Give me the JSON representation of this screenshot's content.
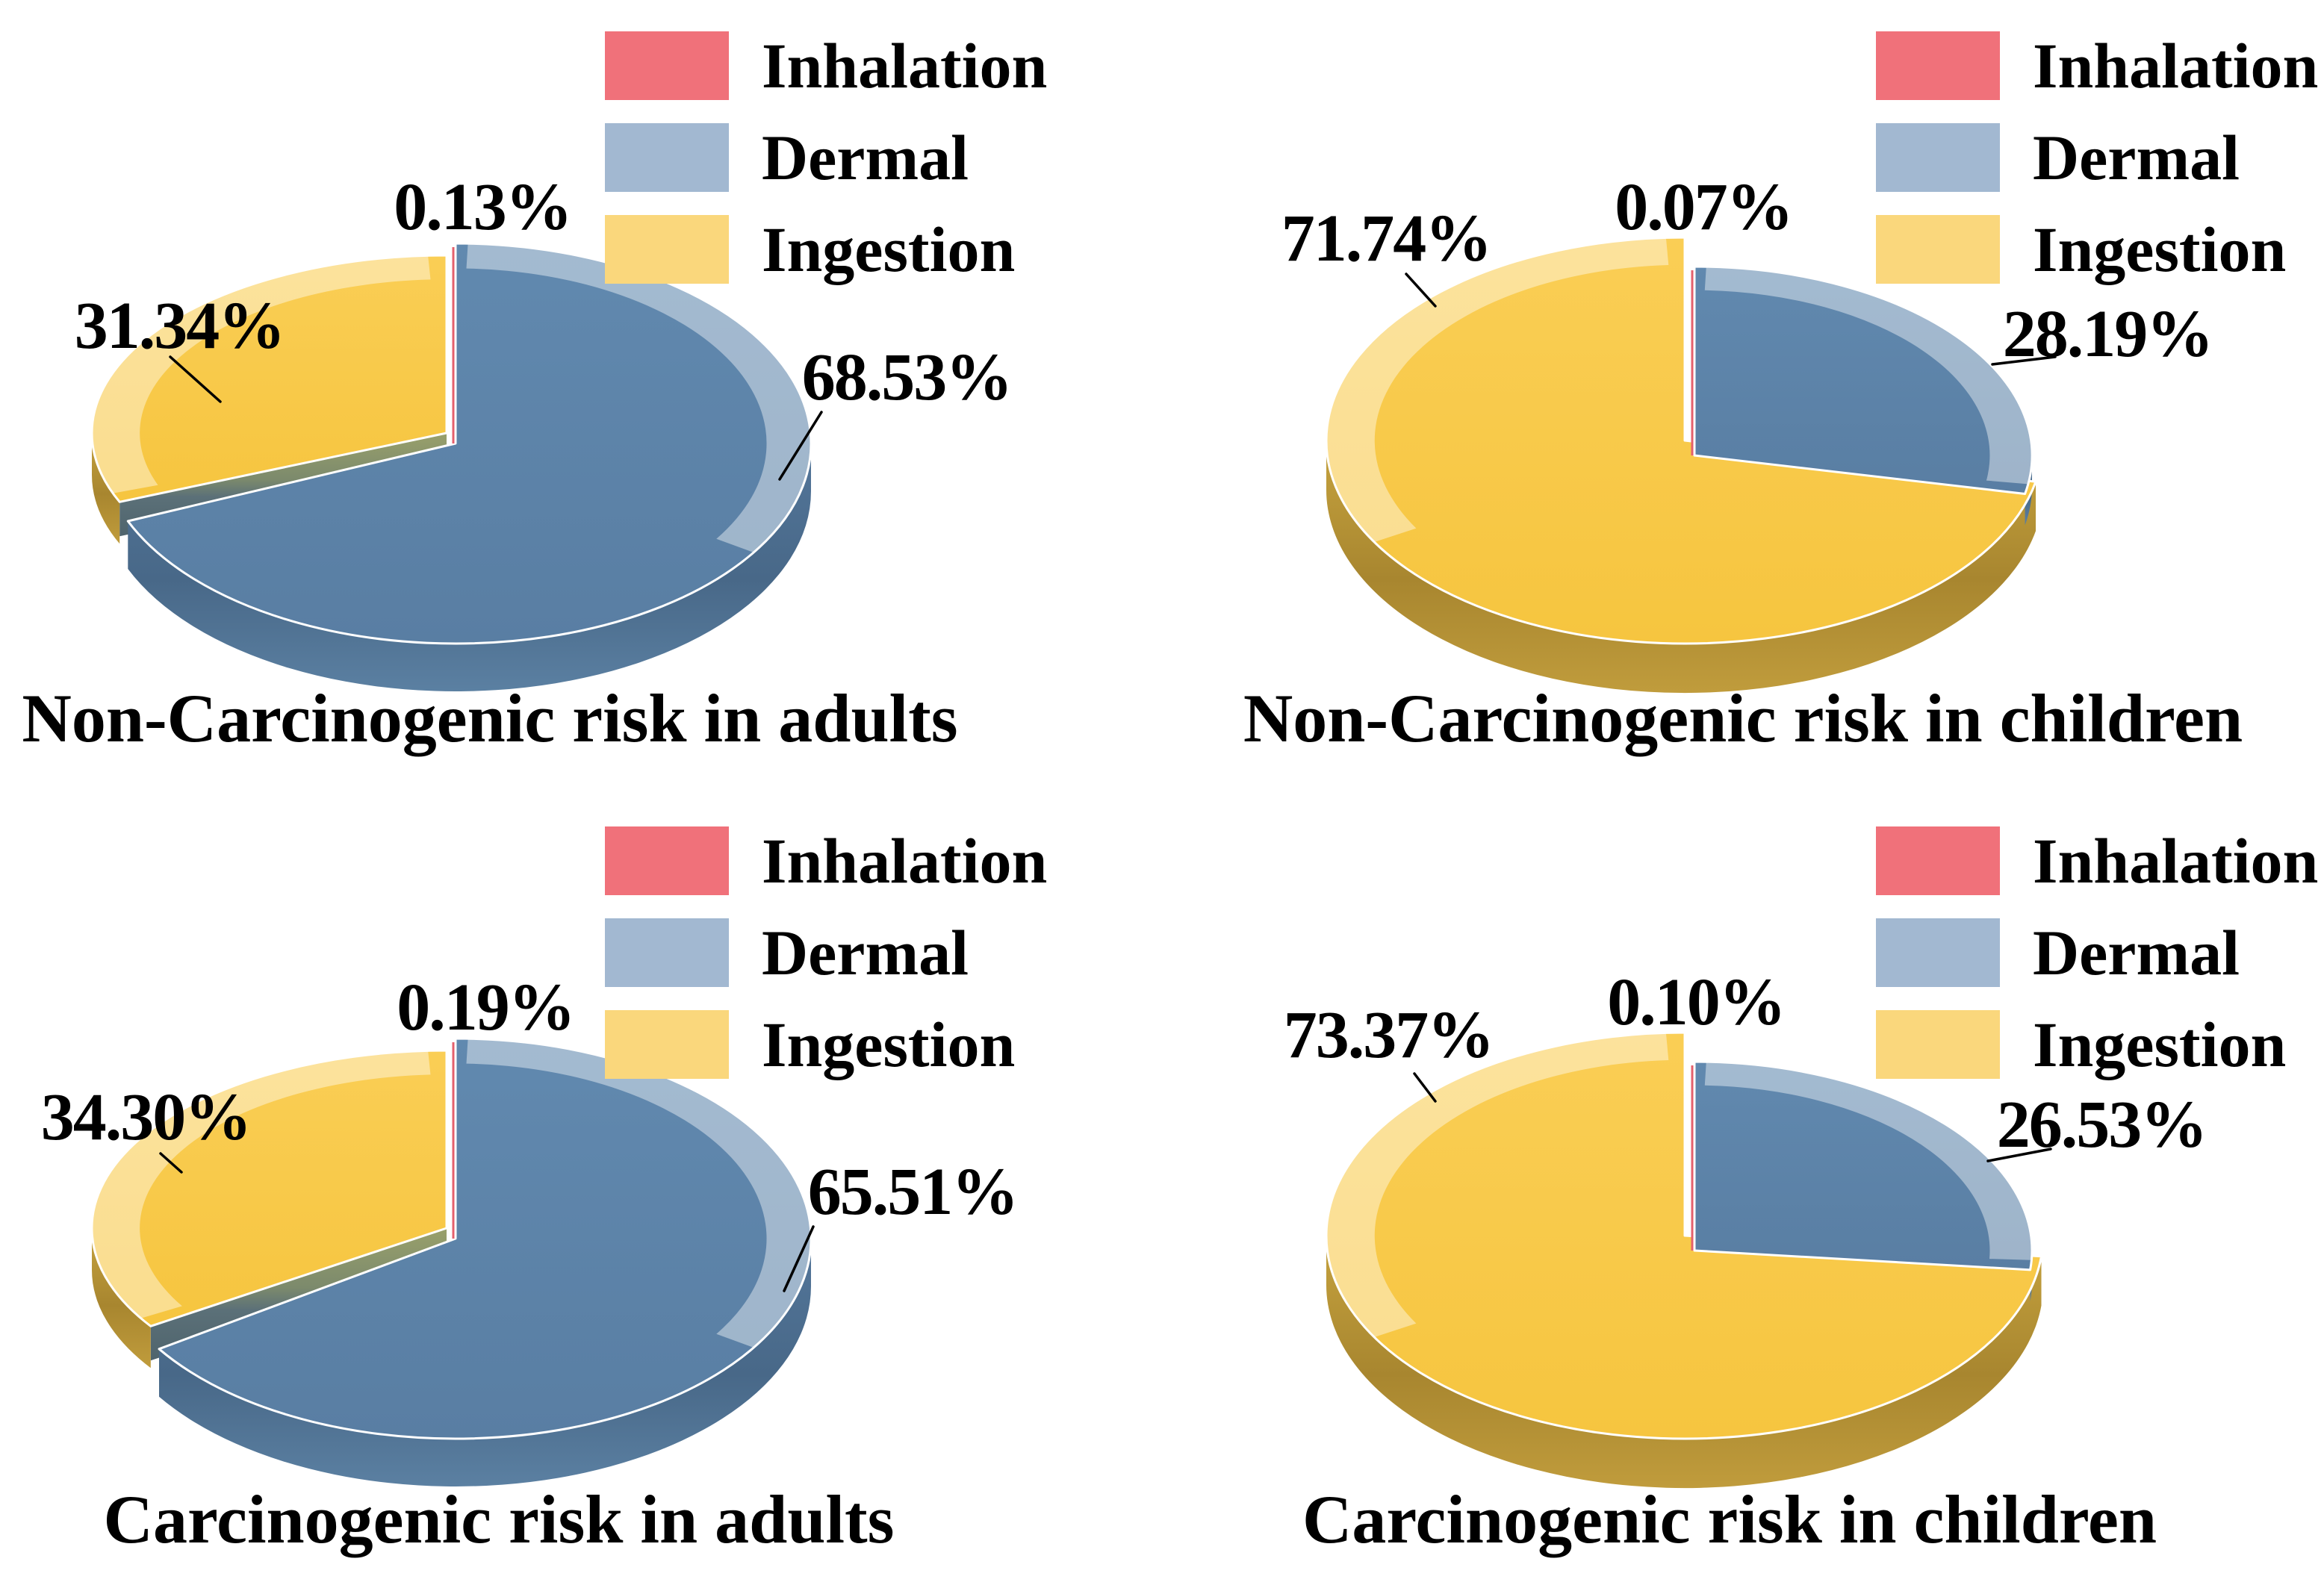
{
  "legend": {
    "items": [
      {
        "label": "Inhalation",
        "color": "#F0717A"
      },
      {
        "label": "Dermal",
        "color": "#A2B8D1"
      },
      {
        "label": "Ingestion",
        "color": "#FAD77C"
      }
    ]
  },
  "colors": {
    "inhalation_pie": "#E4606C",
    "dermal_pie": "#5E86AC",
    "ingestion_pie": "#F9CC4D",
    "text": "#000000",
    "background": "#FFFFFF"
  },
  "chart_data": [
    {
      "type": "pie",
      "title": "Non-Carcinogenic risk in adults",
      "legend_position": "top-right",
      "series": [
        {
          "name": "Inhalation",
          "value": 0.13,
          "label": "0.13%"
        },
        {
          "name": "Dermal",
          "value": 68.53,
          "label": "68.53%"
        },
        {
          "name": "Ingestion",
          "value": 31.34,
          "label": "31.34%"
        }
      ]
    },
    {
      "type": "pie",
      "title": "Non-Carcinogenic risk in children",
      "legend_position": "top-right",
      "series": [
        {
          "name": "Inhalation",
          "value": 0.07,
          "label": "0.07%"
        },
        {
          "name": "Dermal",
          "value": 28.19,
          "label": "28.19%"
        },
        {
          "name": "Ingestion",
          "value": 71.74,
          "label": "71.74%"
        }
      ]
    },
    {
      "type": "pie",
      "title": "Carcinogenic risk in adults",
      "legend_position": "top-right",
      "series": [
        {
          "name": "Inhalation",
          "value": 0.19,
          "label": "0.19%"
        },
        {
          "name": "Dermal",
          "value": 65.51,
          "label": "65.51%"
        },
        {
          "name": "Ingestion",
          "value": 34.3,
          "label": "34.30%"
        }
      ]
    },
    {
      "type": "pie",
      "title": "Carcinogenic risk in children",
      "legend_position": "top-right",
      "series": [
        {
          "name": "Inhalation",
          "value": 0.1,
          "label": "0.10%"
        },
        {
          "name": "Dermal",
          "value": 26.53,
          "label": "26.53%"
        },
        {
          "name": "Ingestion",
          "value": 73.37,
          "label": "73.37%"
        }
      ]
    }
  ]
}
